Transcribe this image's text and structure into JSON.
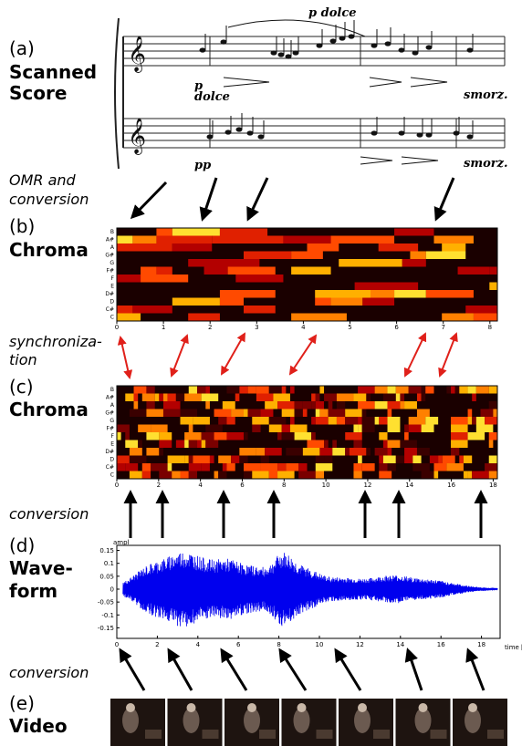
{
  "panels": [
    {
      "letter": "(a)",
      "label": [
        "Scanned",
        "Score"
      ]
    },
    {
      "letter": "(b)",
      "label": [
        "Chroma"
      ]
    },
    {
      "letter": "(c)",
      "label": [
        "Chroma"
      ]
    },
    {
      "letter": "(d)",
      "label": [
        "Wave-",
        "form"
      ]
    },
    {
      "letter": "(e)",
      "label": [
        "Video"
      ]
    }
  ],
  "transitions": [
    [
      "OMR and",
      "conversion"
    ],
    [
      "synchroniza-",
      "tion"
    ],
    [
      "conversion"
    ],
    [
      "conversion"
    ]
  ],
  "score": {
    "annotations": [
      "p dolce",
      "p",
      "dolce",
      "pp",
      "smorz.",
      "smorz."
    ]
  },
  "chroma_b": {
    "pitches": [
      "B",
      "A#",
      "A",
      "G#",
      "G",
      "F#",
      "F",
      "E",
      "D#",
      "D",
      "C#",
      "C"
    ],
    "xticks": [
      0,
      1,
      2,
      3,
      4,
      5,
      6,
      7,
      8
    ]
  },
  "chroma_c": {
    "pitches": [
      "B",
      "A#",
      "A",
      "G#",
      "G",
      "F#",
      "F",
      "E",
      "D#",
      "D",
      "C#",
      "C"
    ],
    "xticks": [
      0,
      2,
      4,
      6,
      8,
      10,
      12,
      14,
      16,
      18
    ]
  },
  "waveform": {
    "ylabel": "ampl",
    "xlabel": "time [",
    "yticks": [
      0.15,
      0.1,
      0.05,
      0,
      -0.05,
      -0.1,
      -0.15
    ],
    "xticks": [
      0,
      2,
      4,
      6,
      8,
      10,
      12,
      14,
      16,
      18
    ]
  }
}
